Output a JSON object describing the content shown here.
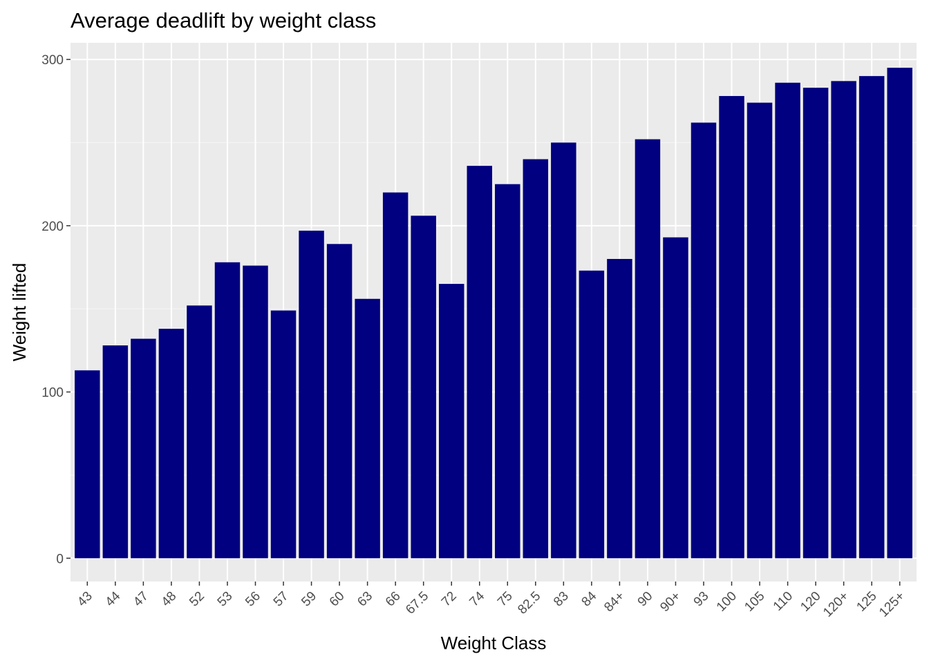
{
  "chart_data": {
    "type": "bar",
    "title": "Average deadlift by weight class",
    "xlabel": "Weight Class",
    "ylabel": "Weight lifted",
    "categories": [
      "43",
      "44",
      "47",
      "48",
      "52",
      "53",
      "56",
      "57",
      "59",
      "60",
      "63",
      "66",
      "67.5",
      "72",
      "74",
      "75",
      "82.5",
      "83",
      "84",
      "84+",
      "90",
      "90+",
      "93",
      "100",
      "105",
      "110",
      "120",
      "120+",
      "125",
      "125+"
    ],
    "values": [
      113,
      128,
      132,
      138,
      152,
      178,
      176,
      149,
      197,
      189,
      156,
      220,
      206,
      165,
      236,
      225,
      240,
      250,
      173,
      180,
      252,
      193,
      262,
      278,
      274,
      286,
      283,
      287,
      290,
      295
    ],
    "ylim": [
      -14,
      310
    ],
    "yticks": [
      0,
      100,
      200,
      300
    ],
    "grid": true,
    "legend": "none",
    "colors": {
      "bar": "#000080",
      "panel": "#ebebeb",
      "grid_major": "#ffffff",
      "grid_minor": "#f5f5f5"
    }
  }
}
